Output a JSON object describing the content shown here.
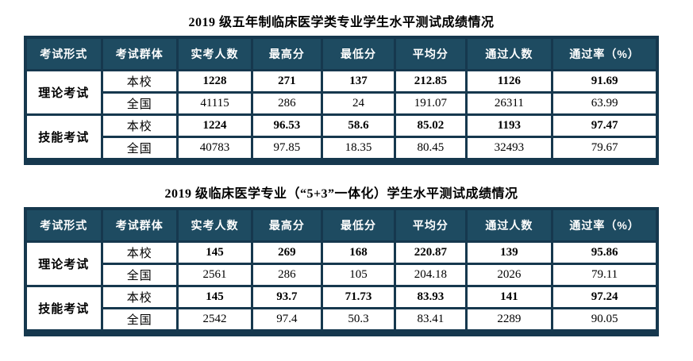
{
  "colors": {
    "header_navy": "#1E4B61",
    "grid_navy": "#16384E",
    "shaded_row_gray": "#E8E8E8",
    "header_text": "#FFFFFF",
    "body_text": "#000000"
  },
  "tables": [
    {
      "title": "2019 级五年制临床医学类专业学生水平测试成绩情况",
      "headers": [
        "考试形式",
        "考试群体",
        "实考人数",
        "最高分",
        "最低分",
        "平均分",
        "通过人数",
        "通过率（%）"
      ],
      "groups": [
        {
          "form": "理论考试",
          "rows": [
            {
              "cohort": "本校",
              "values": [
                "1228",
                "271",
                "137",
                "212.85",
                "1126",
                "91.69"
              ],
              "emphasis": true,
              "shaded": true
            },
            {
              "cohort": "全国",
              "values": [
                "41115",
                "286",
                "24",
                "191.07",
                "26311",
                "63.99"
              ],
              "emphasis": false,
              "shaded": false
            }
          ]
        },
        {
          "form": "技能考试",
          "rows": [
            {
              "cohort": "本校",
              "values": [
                "1224",
                "96.53",
                "58.6",
                "85.02",
                "1193",
                "97.47"
              ],
              "emphasis": true,
              "shaded": false
            },
            {
              "cohort": "全国",
              "values": [
                "40783",
                "97.85",
                "18.35",
                "80.45",
                "32493",
                "79.67"
              ],
              "emphasis": false,
              "shaded": true
            }
          ]
        }
      ]
    },
    {
      "title": "2019 级临床医学专业（“5+3”一体化）学生水平测试成绩情况",
      "headers": [
        "考试形式",
        "考试群体",
        "实考人数",
        "最高分",
        "最低分",
        "平均分",
        "通过人数",
        "通过率（%）"
      ],
      "groups": [
        {
          "form": "理论考试",
          "rows": [
            {
              "cohort": "本校",
              "values": [
                "145",
                "269",
                "168",
                "220.87",
                "139",
                "95.86"
              ],
              "emphasis": true,
              "shaded": true
            },
            {
              "cohort": "全国",
              "values": [
                "2561",
                "286",
                "105",
                "204.18",
                "2026",
                "79.11"
              ],
              "emphasis": false,
              "shaded": false
            }
          ]
        },
        {
          "form": "技能考试",
          "rows": [
            {
              "cohort": "本校",
              "values": [
                "145",
                "93.7",
                "71.73",
                "83.93",
                "141",
                "97.24"
              ],
              "emphasis": true,
              "shaded": false
            },
            {
              "cohort": "全国",
              "values": [
                "2542",
                "97.4",
                "50.3",
                "83.41",
                "2289",
                "90.05"
              ],
              "emphasis": false,
              "shaded": false
            }
          ]
        }
      ]
    }
  ]
}
